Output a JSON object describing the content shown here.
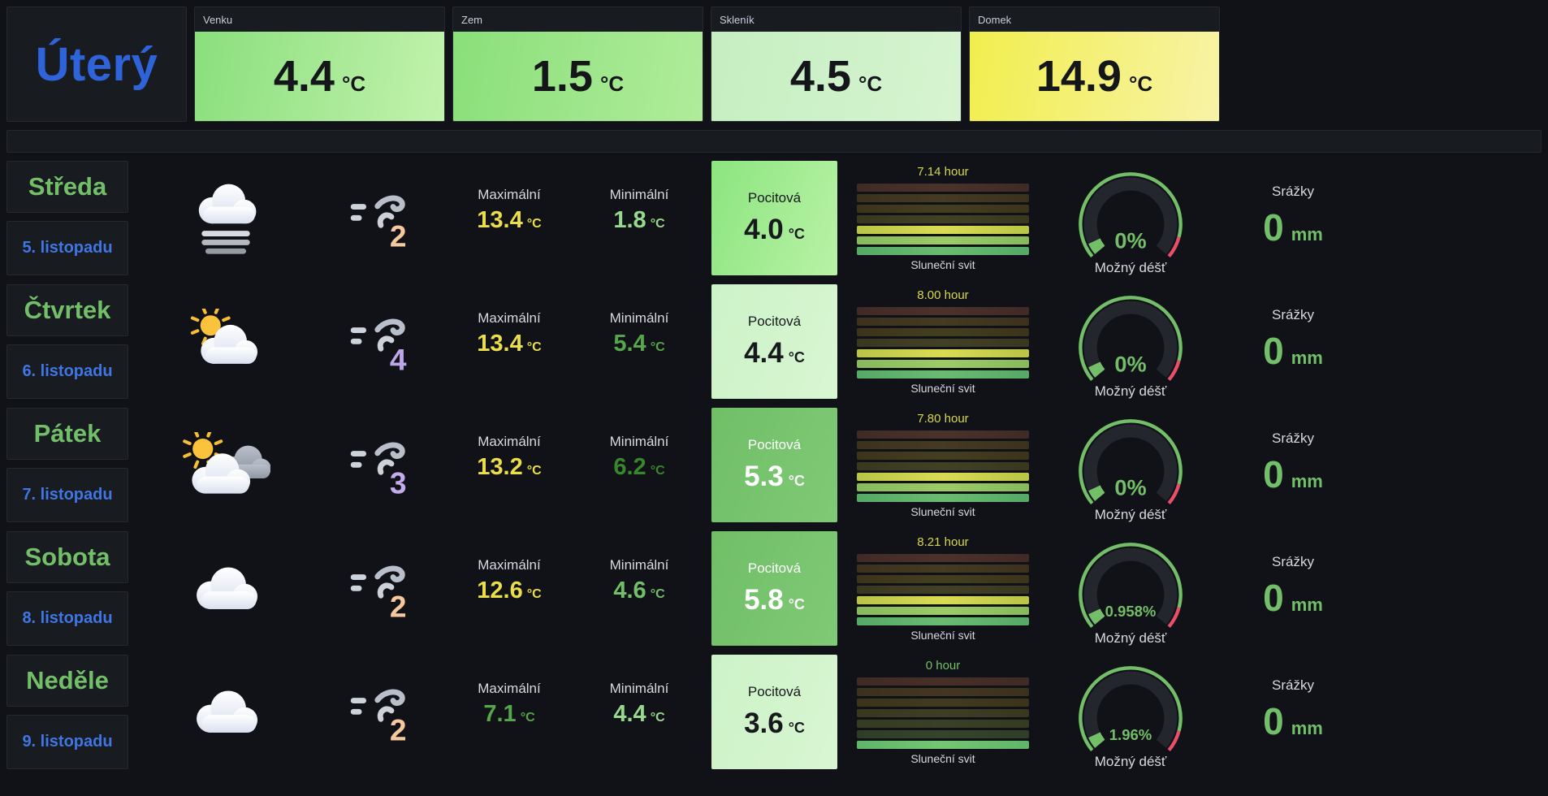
{
  "header": {
    "today": "Úterý",
    "stats": [
      {
        "title": "Venku",
        "value": "4.4",
        "unit": "°C",
        "bg1": "#8adf7c",
        "bg2": "#c2f2ad"
      },
      {
        "title": "Zem",
        "value": "1.5",
        "unit": "°C",
        "bg1": "#8adf7a",
        "bg2": "#b0ec9a"
      },
      {
        "title": "Skleník",
        "value": "4.5",
        "unit": "°C",
        "bg1": "#c6eec2",
        "bg2": "#d6f4d0"
      },
      {
        "title": "Domek",
        "value": "14.9",
        "unit": "°C",
        "bg1": "#f1ee4e",
        "bg2": "#f8f3a6"
      }
    ]
  },
  "labels": {
    "max": "Maximální",
    "min": "Minimální",
    "feels": "Pocitová",
    "sun": "Sluneční svit",
    "rain": "Možný déšť",
    "precip": "Srážky"
  },
  "theme": {
    "gauge_green": "#73bf69",
    "gauge_red": "#e8506a",
    "gauge_track": "#23262c",
    "green_text": "#73bf69",
    "blue_text": "#3f76e3"
  },
  "rows": [
    {
      "day": "Středa",
      "date": "5. listopadu",
      "icon": "fog",
      "wind": {
        "value": "2",
        "color": "#f5c89e"
      },
      "max": {
        "value": "13.4",
        "unit": "°C",
        "color": "#eade49"
      },
      "min": {
        "value": "1.8",
        "unit": "°C",
        "color": "#96d98d"
      },
      "feels": {
        "value": "4.0",
        "unit": "°C",
        "bg1": "#8ce57f",
        "bg2": "#b9f2a6",
        "fg": "#17191d"
      },
      "sun": {
        "hours": "7.14 hour",
        "hours_color": "#d6d74f",
        "bars": [
          [
            "#402a25",
            "#4b332b"
          ],
          [
            "#3c311d",
            "#453b23"
          ],
          [
            "#3b341c",
            "#443e21"
          ],
          [
            "#3a3720",
            "#424125"
          ],
          [
            "#b9c546",
            "#dadb53"
          ],
          [
            "#87ba5d",
            "#9dcc67"
          ],
          [
            "#56a966",
            "#69bc6f"
          ]
        ]
      },
      "rain": {
        "value": "0%"
      },
      "precip": {
        "value": "0",
        "unit": "mm"
      }
    },
    {
      "day": "Čtvrtek",
      "date": "6. listopadu",
      "icon": "sun-cloud",
      "wind": {
        "value": "4",
        "color": "#bda7e8"
      },
      "max": {
        "value": "13.4",
        "unit": "°C",
        "color": "#eade49"
      },
      "min": {
        "value": "5.4",
        "unit": "°C",
        "color": "#56a64b"
      },
      "feels": {
        "value": "4.4",
        "unit": "°C",
        "bg1": "#cdf2c8",
        "bg2": "#d8f6d2",
        "fg": "#17191d"
      },
      "sun": {
        "hours": "8.00 hour",
        "hours_color": "#d6d74f",
        "bars": [
          [
            "#402a25",
            "#4b332b"
          ],
          [
            "#3c311d",
            "#453b23"
          ],
          [
            "#3b341c",
            "#443e21"
          ],
          [
            "#3a3720",
            "#424125"
          ],
          [
            "#b9c546",
            "#dadb53"
          ],
          [
            "#87ba5d",
            "#9dcc67"
          ],
          [
            "#56a966",
            "#69bc6f"
          ]
        ]
      },
      "rain": {
        "value": "0%"
      },
      "precip": {
        "value": "0",
        "unit": "mm"
      }
    },
    {
      "day": "Pátek",
      "date": "7. listopadu",
      "icon": "sun-clouds",
      "wind": {
        "value": "3",
        "color": "#c4abeb"
      },
      "max": {
        "value": "13.2",
        "unit": "°C",
        "color": "#eade49"
      },
      "min": {
        "value": "6.2",
        "unit": "°C",
        "color": "#37872d"
      },
      "feels": {
        "value": "5.3",
        "unit": "°C",
        "bg1": "#70bf67",
        "bg2": "#80c976",
        "fg": "#ffffff"
      },
      "sun": {
        "hours": "7.80 hour",
        "hours_color": "#d6d74f",
        "bars": [
          [
            "#402a25",
            "#4b332b"
          ],
          [
            "#3c311d",
            "#453b23"
          ],
          [
            "#3b341c",
            "#443e21"
          ],
          [
            "#3a3720",
            "#424125"
          ],
          [
            "#b9c546",
            "#dadb53"
          ],
          [
            "#87ba5d",
            "#9dcc67"
          ],
          [
            "#56a966",
            "#69bc6f"
          ]
        ]
      },
      "rain": {
        "value": "0%"
      },
      "precip": {
        "value": "0",
        "unit": "mm"
      }
    },
    {
      "day": "Sobota",
      "date": "8. listopadu",
      "icon": "cloud",
      "wind": {
        "value": "2",
        "color": "#f5c89e"
      },
      "max": {
        "value": "12.6",
        "unit": "°C",
        "color": "#eade49"
      },
      "min": {
        "value": "4.6",
        "unit": "°C",
        "color": "#73bf69"
      },
      "feels": {
        "value": "5.8",
        "unit": "°C",
        "bg1": "#70bf67",
        "bg2": "#80c976",
        "fg": "#ffffff"
      },
      "sun": {
        "hours": "8.21 hour",
        "hours_color": "#d6d74f",
        "bars": [
          [
            "#402a25",
            "#4b332b"
          ],
          [
            "#3c311d",
            "#453b23"
          ],
          [
            "#3b341c",
            "#443e21"
          ],
          [
            "#3a3720",
            "#424125"
          ],
          [
            "#b9c546",
            "#dadb53"
          ],
          [
            "#87ba5d",
            "#9dcc67"
          ],
          [
            "#56a966",
            "#69bc6f"
          ]
        ]
      },
      "rain": {
        "value": "0.958%"
      },
      "precip": {
        "value": "0",
        "unit": "mm"
      }
    },
    {
      "day": "Neděle",
      "date": "9. listopadu",
      "icon": "cloud",
      "wind": {
        "value": "2",
        "color": "#f5c89e"
      },
      "max": {
        "value": "7.1",
        "unit": "°C",
        "color": "#56a64b"
      },
      "min": {
        "value": "4.4",
        "unit": "°C",
        "color": "#96d98d"
      },
      "feels": {
        "value": "3.6",
        "unit": "°C",
        "bg1": "#cdf2c8",
        "bg2": "#d8f6d2",
        "fg": "#17191d"
      },
      "sun": {
        "hours": "0 hour",
        "hours_color": "#73bf69",
        "bars": [
          [
            "#402a25",
            "#482f27"
          ],
          [
            "#3c311d",
            "#433723"
          ],
          [
            "#3b341c",
            "#413b21"
          ],
          [
            "#393720",
            "#3f3d24"
          ],
          [
            "#343b22",
            "#394026"
          ],
          [
            "#2f3d27",
            "#35442b"
          ],
          [
            "#60b569",
            "#75c674"
          ]
        ]
      },
      "rain": {
        "value": "1.96%"
      },
      "precip": {
        "value": "0",
        "unit": "mm"
      }
    }
  ]
}
